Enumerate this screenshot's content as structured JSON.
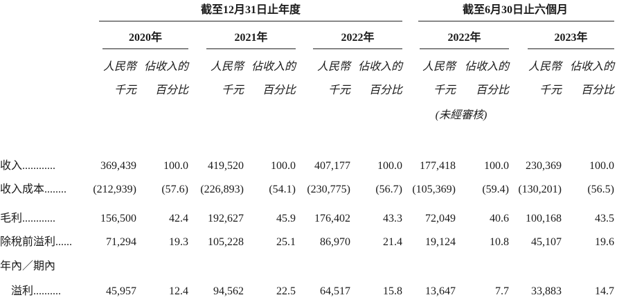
{
  "header": {
    "groups": [
      "截至12月31日止年度",
      "截至6月30日止六個月"
    ],
    "years": [
      "2020年",
      "2021年",
      "2022年",
      "2022年",
      "2023年"
    ],
    "columns": [
      {
        "line1": "人民幣",
        "line2": "千元"
      },
      {
        "line1": "佔收入的",
        "line2": "百分比"
      },
      {
        "line1": "人民幣",
        "line2": "千元"
      },
      {
        "line1": "佔收入的",
        "line2": "百分比"
      },
      {
        "line1": "人民幣",
        "line2": "千元"
      },
      {
        "line1": "佔收入的",
        "line2": "百分比"
      },
      {
        "line1": "人民幣",
        "line2": "千元"
      },
      {
        "line1": "佔收入的",
        "line2": "百分比"
      },
      {
        "line1": "人民幣",
        "line2": "千元"
      },
      {
        "line1": "佔收入的",
        "line2": "百分比"
      }
    ],
    "unaudited": "(未經審核)"
  },
  "table": {
    "rows": [
      {
        "label": [
          "收入............"
        ],
        "cells": [
          "369,439",
          "100.0",
          "419,520",
          "100.0",
          "407,177",
          "100.0",
          "177,418",
          "100.0",
          "230,369",
          "100.0"
        ]
      },
      {
        "label": [
          "收入成本........"
        ],
        "cells": [
          "(212,939)",
          "(57.6)",
          "(226,893)",
          "(54.1)",
          "(230,775)",
          "(56.7)",
          "(105,369)",
          "(59.4)",
          "(130,201)",
          "(56.5)"
        ]
      },
      {
        "label": [
          "毛利............"
        ],
        "cells": [
          "156,500",
          "42.4",
          "192,627",
          "45.9",
          "176,402",
          "43.3",
          "72,049",
          "40.6",
          "100,168",
          "43.5"
        ]
      },
      {
        "label": [
          "除稅前溢利......"
        ],
        "cells": [
          "71,294",
          "19.3",
          "105,228",
          "25.1",
          "86,970",
          "21.4",
          "19,124",
          "10.8",
          "45,107",
          "19.6"
        ]
      },
      {
        "label": [
          "年內／期內",
          "溢利.........."
        ],
        "cells": [
          "45,957",
          "12.4",
          "94,562",
          "22.5",
          "64,517",
          "15.8",
          "13,647",
          "7.7",
          "33,883",
          "14.7"
        ]
      }
    ]
  }
}
